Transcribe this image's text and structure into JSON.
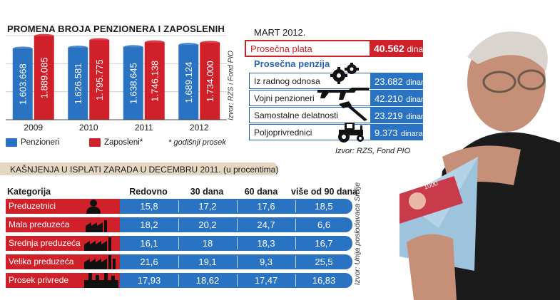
{
  "chart_data": [
    {
      "type": "bar",
      "title": "PROMENA BROJA PENZIONERA I ZAPOSLENIH",
      "categories": [
        "2009",
        "2010",
        "2011",
        "2012"
      ],
      "series": [
        {
          "name": "Penzioneri",
          "color": "#2a72c2",
          "values": [
            1603668,
            1626581,
            1638645,
            1689124
          ],
          "labels": [
            "1.603.668",
            "1.626.581",
            "1.638.645",
            "1.689.124"
          ]
        },
        {
          "name": "Zaposleni*",
          "color": "#d0202a",
          "values": [
            1889085,
            1795775,
            1746138,
            1734000
          ],
          "labels": [
            "1.889.085",
            "1.795.775",
            "1.746.138",
            "1.734.000"
          ]
        }
      ],
      "ylim": [
        0,
        1900000
      ],
      "grid": true,
      "legend_position": "bottom",
      "note": "* godišnji prosek",
      "source": "Izvor: RZS i Fond PIO"
    },
    {
      "type": "table",
      "title": "KAŠNJENJA U ISPLATI ZARADA U DECEMBRU 2011. (u procentima)",
      "columns": [
        "Kategorija",
        "Redovno",
        "30 dana",
        "60 dana",
        "više od 90 dana"
      ],
      "rows": [
        {
          "category": "Preduzetnici",
          "icon": "person-icon",
          "values": [
            "15,8",
            "17,2",
            "17,6",
            "18,5"
          ]
        },
        {
          "category": "Mala preduzeća",
          "icon": "small-factory-icon",
          "values": [
            "18,2",
            "20,2",
            "24,7",
            "6,6"
          ]
        },
        {
          "category": "Srednja preduzeća",
          "icon": "medium-factory-icon",
          "values": [
            "16,1",
            "18",
            "18,3",
            "16,7"
          ]
        },
        {
          "category": "Velika preduzeća",
          "icon": "large-factory-icon",
          "values": [
            "21,6",
            "19,1",
            "9,3",
            "25,5"
          ]
        },
        {
          "category": "Prosek privrede",
          "icon": "industry-icon",
          "values": [
            "17,93",
            "18,62",
            "17,47",
            "16,83"
          ]
        }
      ],
      "source": "Izvor: Unija poslodavaca Srbije"
    }
  ],
  "pensions_panel": {
    "date": "MART 2012.",
    "salary": {
      "label": "Prosečna plata",
      "value": "40.562",
      "unit": "dinara"
    },
    "pension_title": "Prosečna penzija",
    "rows": [
      {
        "label": "Iz radnog odnosa",
        "icon": "gears-icon",
        "value": "23.682",
        "unit": "dinara"
      },
      {
        "label": "Vojni penzioneri",
        "icon": "rifle-icon",
        "value": "42.210",
        "unit": "dinara"
      },
      {
        "label": "Samostalne delatnosti",
        "icon": "hammer-icon",
        "value": "23.219",
        "unit": "dinara"
      },
      {
        "label": "Poljoprivrednici",
        "icon": "tractor-icon",
        "value": "9.373",
        "unit": "dinara"
      }
    ],
    "source": "Izvor: RZS, Fond PIO"
  },
  "colors": {
    "red": "#d0202a",
    "blue": "#2a72c2",
    "blue_text": "#2a64b2",
    "beige": "#e4d8c2"
  }
}
